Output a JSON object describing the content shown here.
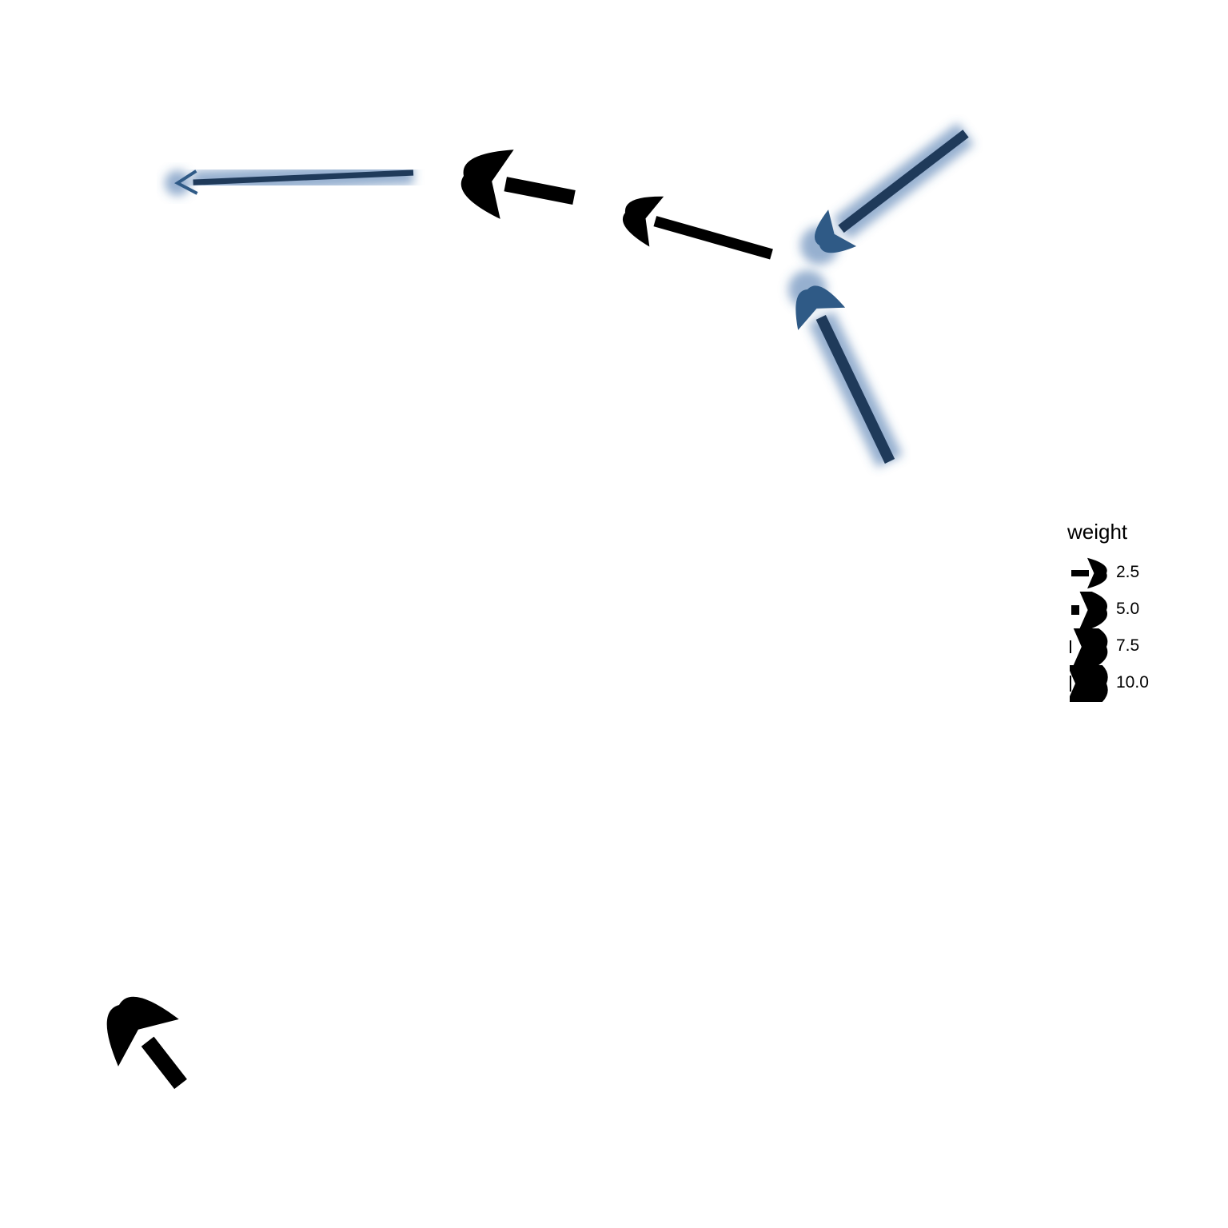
{
  "legend": {
    "title": "weight",
    "items": [
      {
        "label": "2.5",
        "value": 2.5
      },
      {
        "label": "5.0",
        "value": 5.0
      },
      {
        "label": "7.5",
        "value": 7.5
      },
      {
        "label": "10.0",
        "value": 10.0
      }
    ]
  },
  "colors": {
    "highlight_edge": "#1f3a5a",
    "highlight_glow": "#3f6fa8",
    "normal_edge": "#000000",
    "background": "#ffffff"
  },
  "edges": [
    {
      "id": "edge-1",
      "weight": 2,
      "highlighted": true
    },
    {
      "id": "edge-2",
      "weight": 9,
      "highlighted": false
    },
    {
      "id": "edge-3",
      "weight": 6,
      "highlighted": false
    },
    {
      "id": "edge-4",
      "weight": 5,
      "highlighted": true
    },
    {
      "id": "edge-5",
      "weight": 6,
      "highlighted": true
    },
    {
      "id": "edge-6",
      "weight": 10,
      "highlighted": false
    }
  ]
}
